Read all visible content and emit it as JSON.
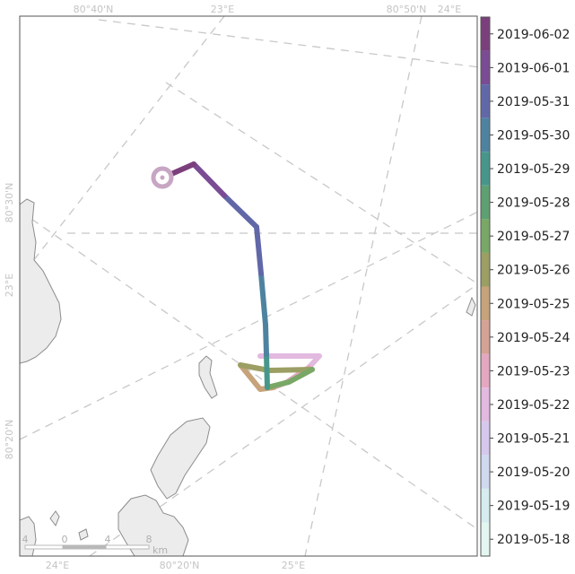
{
  "map": {
    "graticule_labels_top": [
      "80°40'N",
      "23°E",
      "80°50'N",
      "24°E"
    ],
    "graticule_labels_bottom": [
      "24°E",
      "80°20'N",
      "25°E"
    ],
    "graticule_labels_left": [
      "80°30'N",
      "23°E",
      "80°20'N"
    ],
    "land_color": "#ececec",
    "land_outline": "#8c8c8c",
    "graticule_color": "#c8c8c8",
    "start_marker_color": "#c7a6c4"
  },
  "scale_bar": {
    "ticks": [
      "4",
      "0",
      "4",
      "8"
    ],
    "unit": "km"
  },
  "legend": {
    "entries": [
      {
        "label": "2019-06-02",
        "color": "#7b3f7c"
      },
      {
        "label": "2019-06-01",
        "color": "#7a4c94"
      },
      {
        "label": "2019-05-31",
        "color": "#6168a8"
      },
      {
        "label": "2019-05-30",
        "color": "#4e83a0"
      },
      {
        "label": "2019-05-29",
        "color": "#47968c"
      },
      {
        "label": "2019-05-28",
        "color": "#5ea072"
      },
      {
        "label": "2019-05-27",
        "color": "#79a866"
      },
      {
        "label": "2019-05-26",
        "color": "#9c9f64"
      },
      {
        "label": "2019-05-25",
        "color": "#c6a37a"
      },
      {
        "label": "2019-05-24",
        "color": "#d5a296"
      },
      {
        "label": "2019-05-23",
        "color": "#e3a8c0"
      },
      {
        "label": "2019-05-22",
        "color": "#e2b9df"
      },
      {
        "label": "2019-05-21",
        "color": "#d6c8ec"
      },
      {
        "label": "2019-05-20",
        "color": "#cfd9f0"
      },
      {
        "label": "2019-05-19",
        "color": "#d6ecef"
      },
      {
        "label": "2019-05-18",
        "color": "#e4f6f1"
      }
    ]
  }
}
